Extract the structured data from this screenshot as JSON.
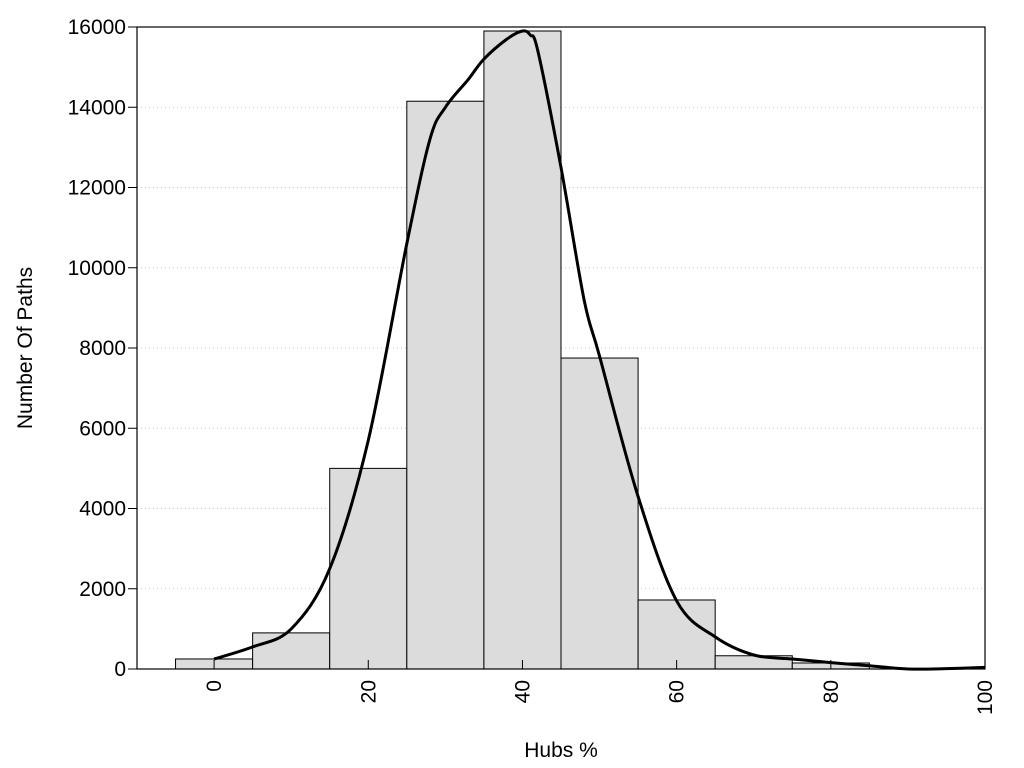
{
  "chart_data": {
    "type": "bar",
    "title": "",
    "xlabel": "Hubs %",
    "ylabel": "Number Of Paths",
    "xlim": [
      -10,
      100
    ],
    "ylim": [
      0,
      16000
    ],
    "xticks": [
      0,
      20,
      40,
      60,
      80,
      100
    ],
    "yticks": [
      0,
      2000,
      4000,
      6000,
      8000,
      10000,
      12000,
      14000,
      16000
    ],
    "grid": "horizontal dotted",
    "bar_color": "#dcdcdc",
    "bins": [
      {
        "from": -5,
        "to": 5,
        "value": 250
      },
      {
        "from": 5,
        "to": 15,
        "value": 900
      },
      {
        "from": 15,
        "to": 25,
        "value": 5000
      },
      {
        "from": 25,
        "to": 35,
        "value": 14150
      },
      {
        "from": 35,
        "to": 45,
        "value": 15900
      },
      {
        "from": 45,
        "to": 55,
        "value": 7750
      },
      {
        "from": 55,
        "to": 65,
        "value": 1720
      },
      {
        "from": 65,
        "to": 75,
        "value": 330
      },
      {
        "from": 75,
        "to": 85,
        "value": 150
      }
    ],
    "density_curve": {
      "x": [
        0,
        5,
        10,
        15,
        20,
        25,
        28,
        30,
        33,
        35,
        38,
        40,
        41,
        42,
        45,
        48,
        50,
        55,
        60,
        65,
        70,
        75,
        80,
        85,
        90,
        95,
        100
      ],
      "y": [
        250,
        550,
        1000,
        2500,
        5700,
        10600,
        13200,
        14000,
        14700,
        15200,
        15700,
        15900,
        15800,
        15400,
        12500,
        9200,
        7800,
        4300,
        1700,
        800,
        350,
        250,
        160,
        80,
        0,
        10,
        40
      ]
    }
  }
}
